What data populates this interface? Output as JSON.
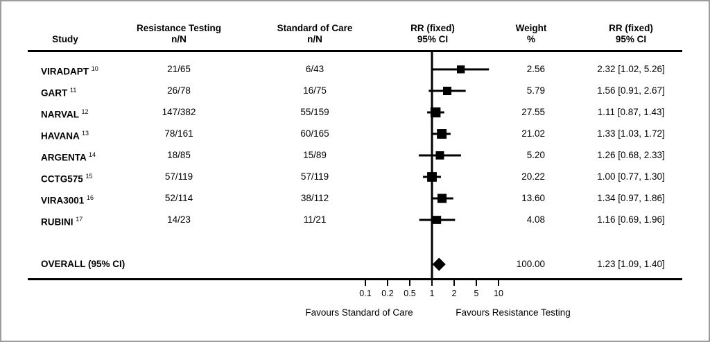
{
  "headers": {
    "study": "Study",
    "cols": [
      {
        "line1": "Resistance Testing",
        "line2": "n/N"
      },
      {
        "line1": "Standard of Care",
        "line2": "n/N"
      },
      {
        "line1": "RR (fixed)",
        "line2": "95% CI"
      },
      {
        "line1": "Weight",
        "line2": "%"
      },
      {
        "line1": "RR (fixed)",
        "line2": "95% CI"
      }
    ]
  },
  "footer": {
    "favours_left": "Favours Standard of Care",
    "favours_right": "Favours Resistance Testing"
  },
  "colors": {
    "marker": "#000000",
    "line": "#000000",
    "frame_border": "#9c9c9c"
  },
  "chart_data": {
    "type": "scatter",
    "subtype": "forest-plot",
    "effect_measure": "RR (fixed) 95% CI",
    "x_axis": {
      "scale": "log",
      "ticks": [
        0.1,
        0.2,
        0.5,
        1,
        2,
        5,
        10
      ]
    },
    "studies": [
      {
        "name": "VIRADAPT",
        "ref": "10",
        "rt_nN": "21/65",
        "soc_nN": "6/43",
        "weight": "2.56",
        "rr": 2.32,
        "ci_low": 1.02,
        "ci_high": 5.26,
        "rr_text": "2.32 [1.02, 5.26]"
      },
      {
        "name": "GART",
        "ref": "11",
        "rt_nN": "26/78",
        "soc_nN": "16/75",
        "weight": "5.79",
        "rr": 1.56,
        "ci_low": 0.91,
        "ci_high": 2.67,
        "rr_text": "1.56 [0.91, 2.67]"
      },
      {
        "name": "NARVAL",
        "ref": "12",
        "rt_nN": "147/382",
        "soc_nN": "55/159",
        "weight": "27.55",
        "rr": 1.11,
        "ci_low": 0.87,
        "ci_high": 1.43,
        "rr_text": "1.11 [0.87, 1.43]"
      },
      {
        "name": "HAVANA",
        "ref": "13",
        "rt_nN": "78/161",
        "soc_nN": "60/165",
        "weight": "21.02",
        "rr": 1.33,
        "ci_low": 1.03,
        "ci_high": 1.72,
        "rr_text": "1.33 [1.03, 1.72]"
      },
      {
        "name": "ARGENTA",
        "ref": "14",
        "rt_nN": "18/85",
        "soc_nN": "15/89",
        "weight": "5.20",
        "rr": 1.26,
        "ci_low": 0.68,
        "ci_high": 2.33,
        "rr_text": "1.26 [0.68, 2.33]"
      },
      {
        "name": "CCTG575",
        "ref": "15",
        "rt_nN": "57/119",
        "soc_nN": "57/119",
        "weight": "20.22",
        "rr": 1.0,
        "ci_low": 0.77,
        "ci_high": 1.3,
        "rr_text": "1.00 [0.77, 1.30]"
      },
      {
        "name": "VIRA3001",
        "ref": "16",
        "rt_nN": "52/114",
        "soc_nN": "38/112",
        "weight": "13.60",
        "rr": 1.34,
        "ci_low": 0.97,
        "ci_high": 1.86,
        "rr_text": "1.34 [0.97, 1.86]"
      },
      {
        "name": "RUBINI",
        "ref": "17",
        "rt_nN": "14/23",
        "soc_nN": "11/21",
        "weight": "4.08",
        "rr": 1.16,
        "ci_low": 0.69,
        "ci_high": 1.96,
        "rr_text": "1.16 [0.69, 1.96]"
      }
    ],
    "overall": {
      "label": "OVERALL (95% CI)",
      "weight": "100.00",
      "rr": 1.23,
      "ci_low": 1.09,
      "ci_high": 1.4,
      "rr_text": "1.23 [1.09, 1.40]"
    }
  }
}
